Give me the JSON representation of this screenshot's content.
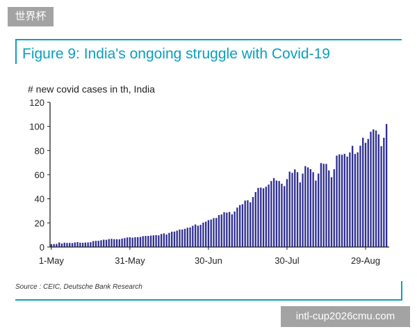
{
  "badge": "世界杯",
  "title": "Figure 9: India's ongoing struggle with Covid-19",
  "source": "Source : CEIC, Deutsche Bank Research",
  "watermark": "intl-cup2026cmu.com",
  "colors": {
    "accent": "#0a9fbe",
    "bar": "#2f2f94",
    "axis": "#222222"
  },
  "chart_data": {
    "type": "bar",
    "ylabel": "# new covid cases in th, India",
    "ylim": [
      0,
      120
    ],
    "yticks": [
      0,
      20,
      40,
      60,
      80,
      100,
      120
    ],
    "xticklabels": [
      "1-May",
      "31-May",
      "30-Jun",
      "30-Jul",
      "29-Aug"
    ],
    "series": [
      {
        "values": [
          2.4,
          2.5,
          2.6,
          3.8,
          2.9,
          3.6,
          3.4,
          3.4,
          3.3,
          3.8,
          4.1,
          3.6,
          3.5,
          3.7,
          3.8,
          4.0,
          4.9,
          5.1,
          5.2,
          5.6,
          6.1,
          6.0,
          6.6,
          6.8,
          6.5,
          6.5,
          6.4,
          7.0,
          7.4,
          7.9,
          8.1,
          7.8,
          8.1,
          8.2,
          8.4,
          9.0,
          9.2,
          9.2,
          9.5,
          9.7,
          9.9,
          9.7,
          10.8,
          11.3,
          10.4,
          11.7,
          12.7,
          12.8,
          13.6,
          14.5,
          14.5,
          15.1,
          16.0,
          16.3,
          17.6,
          18.7,
          17.7,
          18.4,
          20.2,
          21.0,
          22.3,
          22.8,
          24.0,
          24.1,
          26.5,
          27.0,
          28.9,
          28.5,
          29.1,
          27.1,
          29.4,
          32.7,
          34.8,
          35.5,
          38.5,
          38.8,
          37.1,
          41.5,
          45.6,
          49.0,
          49.3,
          48.7,
          50.0,
          51.8,
          54.7,
          57.1,
          55.1,
          54.7,
          52.5,
          50.5,
          56.3,
          62.5,
          61.5,
          64.4,
          62.1,
          53.6,
          60.9,
          67.1,
          66.0,
          64.6,
          62.1,
          55.1,
          60.9,
          69.6,
          69.0,
          68.9,
          63.5,
          57.9,
          64.5,
          75.8,
          76.8,
          76.5,
          77.2,
          75.0,
          78.4,
          83.9,
          77.2,
          78.5,
          84.0,
          90.6,
          86.4,
          89.6,
          95.6,
          97.5,
          96.6,
          93.4,
          83.6,
          90.6,
          102.0
        ]
      }
    ]
  }
}
